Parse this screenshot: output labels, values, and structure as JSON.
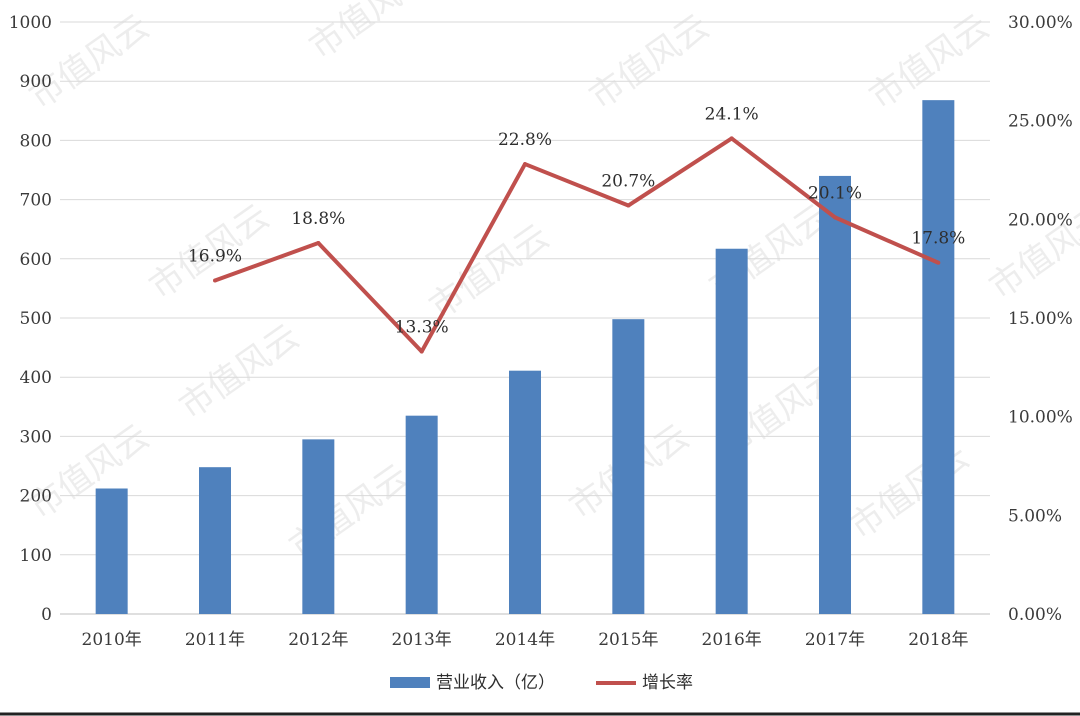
{
  "chart_data": {
    "type": "bar",
    "categories": [
      "2010年",
      "2011年",
      "2012年",
      "2013年",
      "2014年",
      "2015年",
      "2016年",
      "2017年",
      "2018年"
    ],
    "series": [
      {
        "name": "营业收入（亿）",
        "type": "bar",
        "axis": "left",
        "color": "#4f81bd",
        "values": [
          212,
          248,
          295,
          335,
          411,
          498,
          617,
          740,
          868
        ]
      },
      {
        "name": "增长率",
        "type": "line",
        "axis": "right",
        "color": "#c0504d",
        "values": [
          null,
          16.9,
          18.8,
          13.3,
          22.8,
          20.7,
          24.1,
          20.1,
          17.8
        ],
        "labels": [
          "",
          "16.9%",
          "18.8%",
          "13.3%",
          "22.8%",
          "20.7%",
          "24.1%",
          "20.1%",
          "17.8%"
        ]
      }
    ],
    "y_left": {
      "min": 0,
      "max": 1000,
      "ticks": [
        "0",
        "100",
        "200",
        "300",
        "400",
        "500",
        "600",
        "700",
        "800",
        "900",
        "1000"
      ]
    },
    "y_right": {
      "min": 0,
      "max": 30,
      "ticks": [
        "0.00%",
        "5.00%",
        "10.00%",
        "15.00%",
        "20.00%",
        "25.00%",
        "30.00%"
      ]
    },
    "grid": true,
    "legend_position": "bottom",
    "watermark": "市值风云"
  }
}
